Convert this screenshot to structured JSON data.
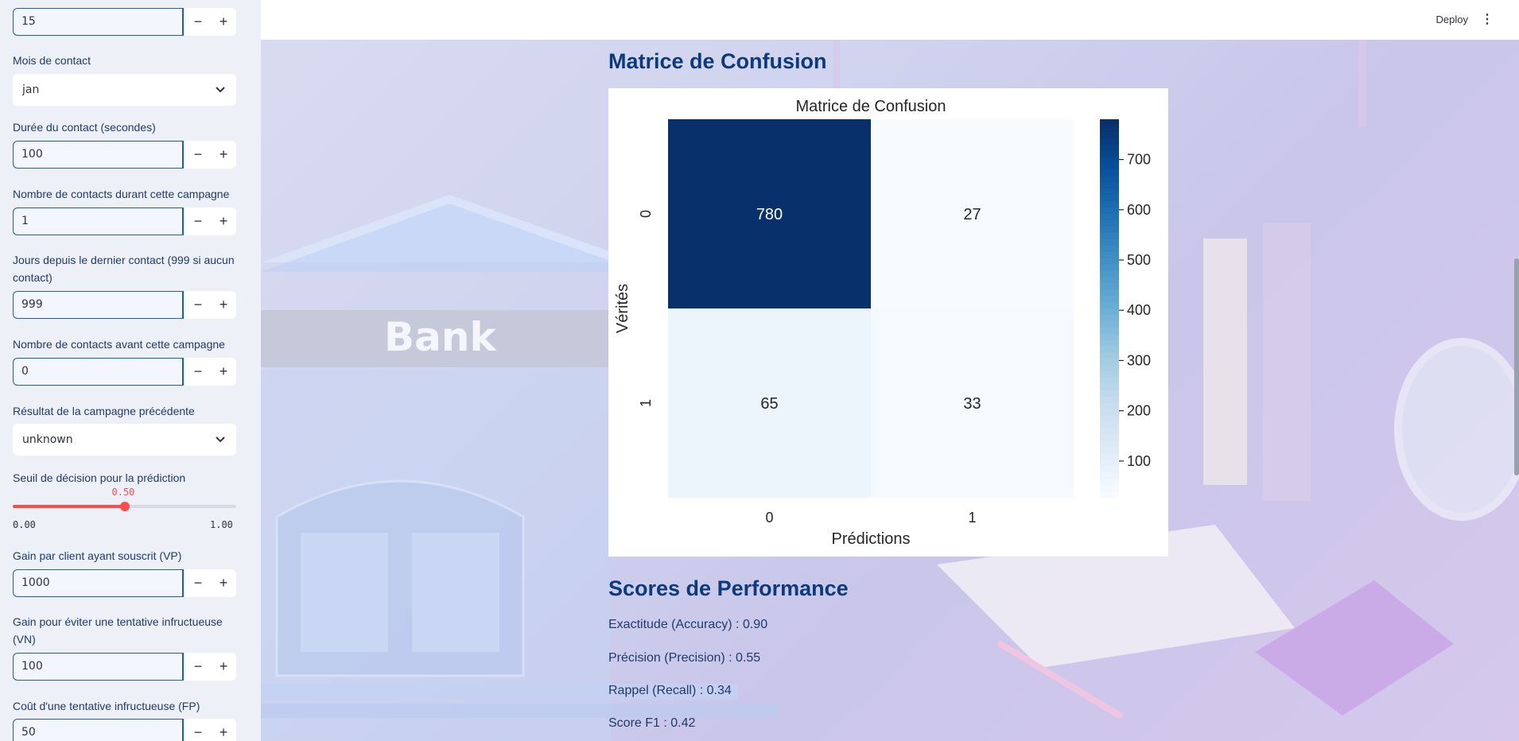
{
  "header": {
    "deploy_label": "Deploy",
    "menu_icon": "kebab-menu-icon"
  },
  "sidebar": {
    "top_value": "15",
    "month": {
      "label": "Mois de contact",
      "value": "jan"
    },
    "duration": {
      "label": "Durée du contact (secondes)",
      "value": "100"
    },
    "campaign_contacts": {
      "label": "Nombre de contacts durant cette campagne",
      "value": "1"
    },
    "pdays": {
      "label": "Jours depuis le dernier contact (999 si aucun contact)",
      "value": "999"
    },
    "previous": {
      "label": "Nombre de contacts avant cette campagne",
      "value": "0"
    },
    "poutcome": {
      "label": "Résultat de la campagne précédente",
      "value": "unknown"
    },
    "threshold": {
      "label": "Seuil de décision pour la prédiction",
      "value": "0.50",
      "min": "0.00",
      "max": "1.00",
      "fraction": 0.5
    },
    "gain_vp": {
      "label": "Gain par client ayant souscrit (VP)",
      "value": "1000"
    },
    "gain_vn": {
      "label": "Gain pour éviter une tentative infructueuse (VN)",
      "value": "100"
    },
    "cost_fp": {
      "label": "Coût d'une tentative infructueuse (FP)",
      "value": "50"
    },
    "minus": "−",
    "plus": "+"
  },
  "background": {
    "bank_sign": "Bank"
  },
  "main": {
    "cm_heading": "Matrice de Confusion",
    "scores_heading": "Scores de Performance",
    "scores": {
      "accuracy": "Exactitude (Accuracy) : 0.90",
      "precision": "Précision (Precision) : 0.55",
      "recall": "Rappel (Recall) : 0.34",
      "f1": "Score F1 : 0.42"
    }
  },
  "chart_data": {
    "type": "heatmap",
    "title": "Matrice de Confusion",
    "xlabel": "Prédictions",
    "ylabel": "Vérités",
    "x_categories": [
      "0",
      "1"
    ],
    "y_categories": [
      "0",
      "1"
    ],
    "values": [
      [
        780,
        27
      ],
      [
        65,
        33
      ]
    ],
    "colorbar_ticks": [
      "100",
      "200",
      "300",
      "400",
      "500",
      "600",
      "700"
    ],
    "colorbar_range": [
      27,
      780
    ],
    "colormap": "Blues",
    "colors": {
      "low": "#f7fbff",
      "high": "#08306b"
    }
  }
}
